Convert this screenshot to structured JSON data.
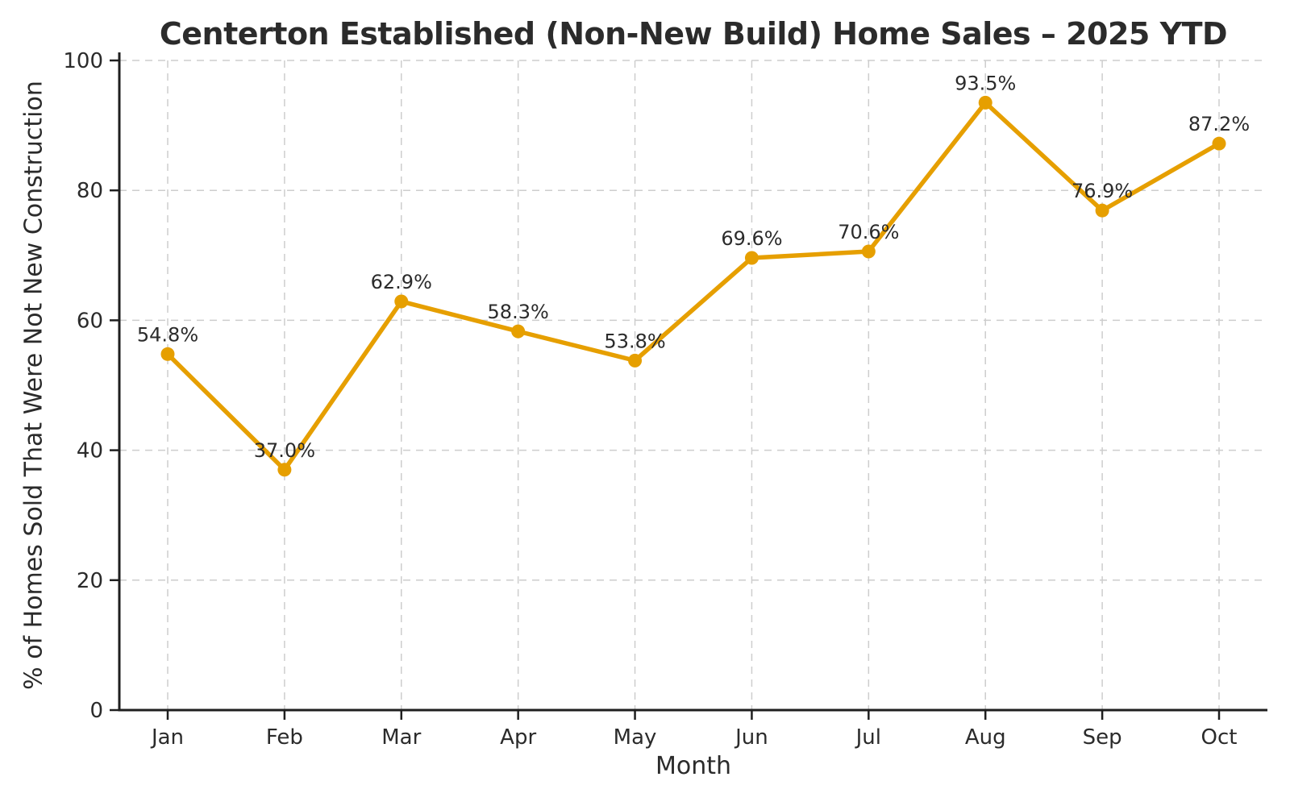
{
  "chart_data": {
    "type": "line",
    "title": "Centerton Established (Non-New Build) Home Sales – 2025 YTD",
    "xlabel": "Month",
    "ylabel": "% of Homes Sold That Were Not New Construction",
    "categories": [
      "Jan",
      "Feb",
      "Mar",
      "Apr",
      "May",
      "Jun",
      "Jul",
      "Aug",
      "Sep",
      "Oct"
    ],
    "values": [
      54.8,
      37.0,
      62.9,
      58.3,
      53.8,
      69.6,
      70.6,
      93.5,
      76.9,
      87.2
    ],
    "point_labels": [
      "54.8%",
      "37.0%",
      "62.9%",
      "58.3%",
      "53.8%",
      "69.6%",
      "70.6%",
      "93.5%",
      "76.9%",
      "87.2%"
    ],
    "ylim": [
      0,
      100
    ],
    "yticks": [
      0,
      20,
      40,
      60,
      80,
      100
    ],
    "grid": true,
    "grid_style": "dashed",
    "legend": false,
    "line_color": "#E69F00",
    "marker_color": "#E69F00",
    "grid_color": "#cdcdcd",
    "spine_color": "#1f1f1f",
    "text_color": "#2b2b2b"
  }
}
